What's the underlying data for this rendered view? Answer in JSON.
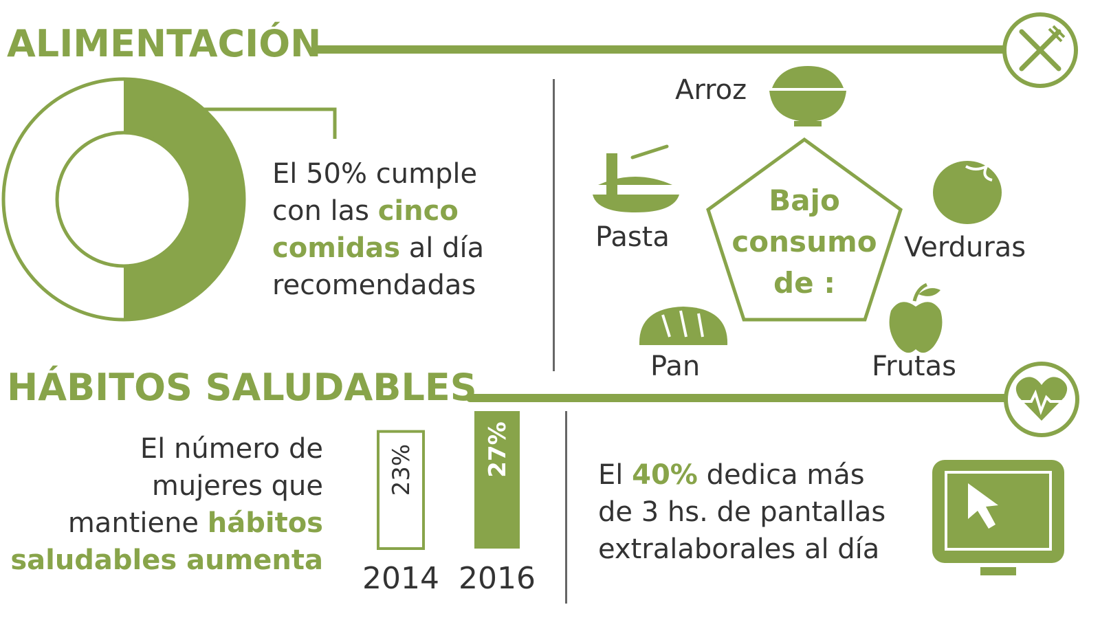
{
  "alimentacion": {
    "heading": "ALIMENTACIÓN",
    "donut_percent": 50,
    "text": {
      "line1": "El 50% cumple",
      "line2_a": "con las ",
      "line2_b": "cinco",
      "line3_a": "comidas",
      "line3_b": " al día",
      "line4": "recomendadas"
    },
    "bajo_consumo": {
      "line1": "Bajo",
      "line2": "consumo",
      "line3": "de :"
    },
    "foods": {
      "arroz": "Arroz",
      "pasta": "Pasta",
      "verduras": "Verduras",
      "pan": "Pan",
      "frutas": "Frutas"
    },
    "icon": "fork-knife-icon"
  },
  "habitos": {
    "heading": "HÁBITOS SALUDABLES",
    "text": {
      "line1": "El número de",
      "line2": "mujeres que",
      "line3_a": "mantiene ",
      "line3_b": "hábitos",
      "line4": "saludables aumenta"
    },
    "icon": "heart-pulse-icon",
    "screen_text": {
      "line1_a": "El ",
      "line1_b": "40%",
      "line1_c": " dedica más",
      "line2": "de 3 hs. de pantallas",
      "line3": "extralaborales al día"
    },
    "screen_icon": "monitor-cursor-icon"
  },
  "chart_data": {
    "type": "bar",
    "categories": [
      "2014",
      "2016"
    ],
    "values": [
      23,
      27
    ],
    "value_labels": [
      "23%",
      "27%"
    ],
    "title": "",
    "xlabel": "",
    "ylabel": ""
  },
  "colors": {
    "accent": "#88a44a",
    "text": "#333333"
  }
}
